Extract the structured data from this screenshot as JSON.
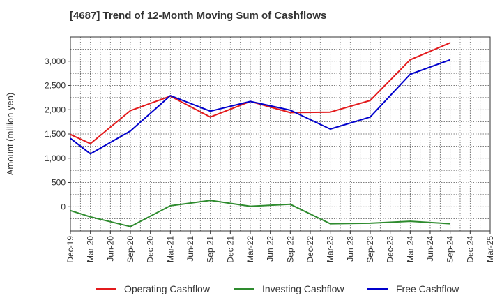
{
  "chart_data": {
    "type": "line",
    "title": "[4687]  Trend of 12-Month Moving Sum of Cashflows",
    "ylabel": "Amount (million yen)",
    "xlabel": "",
    "x": [
      "Dec-19",
      "Mar-20",
      "Jun-20",
      "Sep-20",
      "Dec-20",
      "Mar-21",
      "Jun-21",
      "Sep-21",
      "Dec-21",
      "Mar-22",
      "Jun-22",
      "Sep-22",
      "Dec-22",
      "Mar-23",
      "Jun-23",
      "Sep-23",
      "Dec-23",
      "Mar-24",
      "Jun-24",
      "Sep-24",
      "Dec-24",
      "Mar-25"
    ],
    "yticks": [
      0,
      500,
      1000,
      1500,
      2000,
      2500,
      3000
    ],
    "ytick_labels": [
      "0",
      "500",
      "1,000",
      "1,500",
      "2,000",
      "2,500",
      "3,000"
    ],
    "ylim": [
      -500,
      3500
    ],
    "grid": true,
    "legend_position": "bottom",
    "series": [
      {
        "name": "Operating Cashflow",
        "color": "#e31a1c",
        "values": [
          1490,
          1300,
          null,
          1980,
          null,
          2280,
          null,
          1850,
          null,
          2170,
          null,
          1940,
          null,
          1950,
          null,
          2190,
          null,
          3030,
          null,
          3380,
          null,
          null
        ]
      },
      {
        "name": "Investing Cashflow",
        "color": "#2e8b2e",
        "values": [
          -80,
          -210,
          null,
          -410,
          null,
          20,
          null,
          130,
          null,
          10,
          null,
          50,
          null,
          -350,
          null,
          -340,
          null,
          -300,
          null,
          -350,
          null,
          null
        ]
      },
      {
        "name": "Free Cashflow",
        "color": "#0000cc",
        "values": [
          1410,
          1090,
          null,
          1560,
          null,
          2290,
          null,
          1970,
          null,
          2170,
          null,
          1990,
          null,
          1600,
          null,
          1850,
          null,
          2730,
          null,
          3030,
          null,
          null
        ]
      }
    ]
  }
}
